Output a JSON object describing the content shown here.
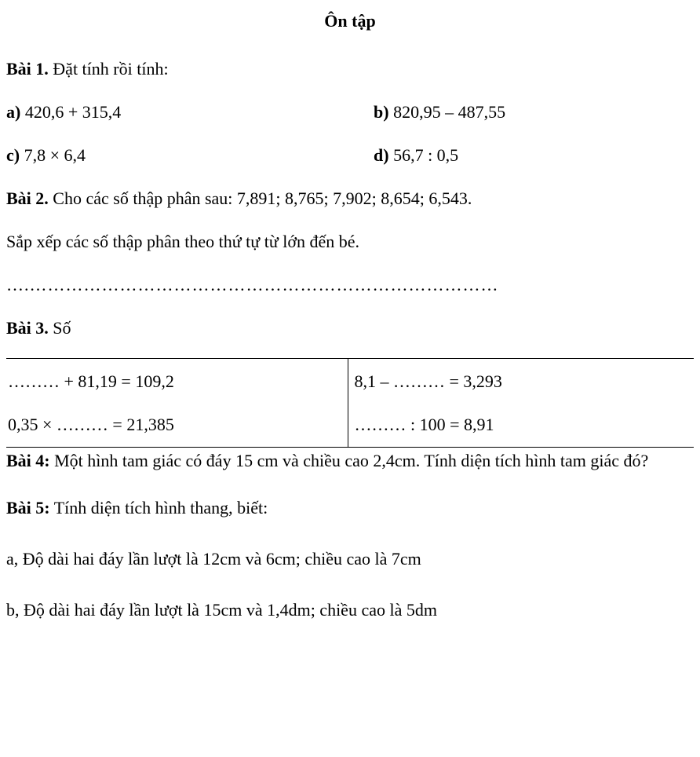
{
  "title": "Ôn tập",
  "bai1": {
    "header_bold": "Bài 1.",
    "header_text": " Đặt tính rồi tính:",
    "a_bold": "a)",
    "a_text": " 420,6 + 315,4",
    "b_bold": "b)",
    "b_text": " 820,95 – 487,55",
    "c_bold": "c)",
    "c_text": " 7,8 × 6,4",
    "d_bold": "d)",
    "d_text": " 56,7 : 0,5"
  },
  "bai2": {
    "header_bold": "Bài 2.",
    "header_text": " Cho các số thập phân sau: 7,891; 8,765; 7,902; 8,654; 6,543.",
    "instruction": "Sắp xếp các số thập phân theo thứ tự từ lớn đến bé.",
    "dotted": "….……………………………………………………………………"
  },
  "bai3": {
    "header_bold": "Bài 3.",
    "header_text": " Số",
    "cell1": "……… + 81,19 = 109,2",
    "cell2": "8,1 – ……… = 3,293",
    "cell3": "0,35 × ……… = 21,385",
    "cell4": "……… : 100 = 8,91"
  },
  "bai4": {
    "header_bold": "Bài 4:",
    "text": " Một hình tam giác có đáy 15 cm và chiều cao 2,4cm. Tính diện tích hình tam giác đó?"
  },
  "bai5": {
    "header_bold": "Bài 5:",
    "header_text": " Tính diện tích hình thang, biết:",
    "item_a": "a, Độ dài hai đáy lần lượt là 12cm và 6cm; chiều cao là 7cm",
    "item_b": "b, Độ dài hai đáy lần lượt là 15cm và 1,4dm; chiều cao là 5dm"
  }
}
